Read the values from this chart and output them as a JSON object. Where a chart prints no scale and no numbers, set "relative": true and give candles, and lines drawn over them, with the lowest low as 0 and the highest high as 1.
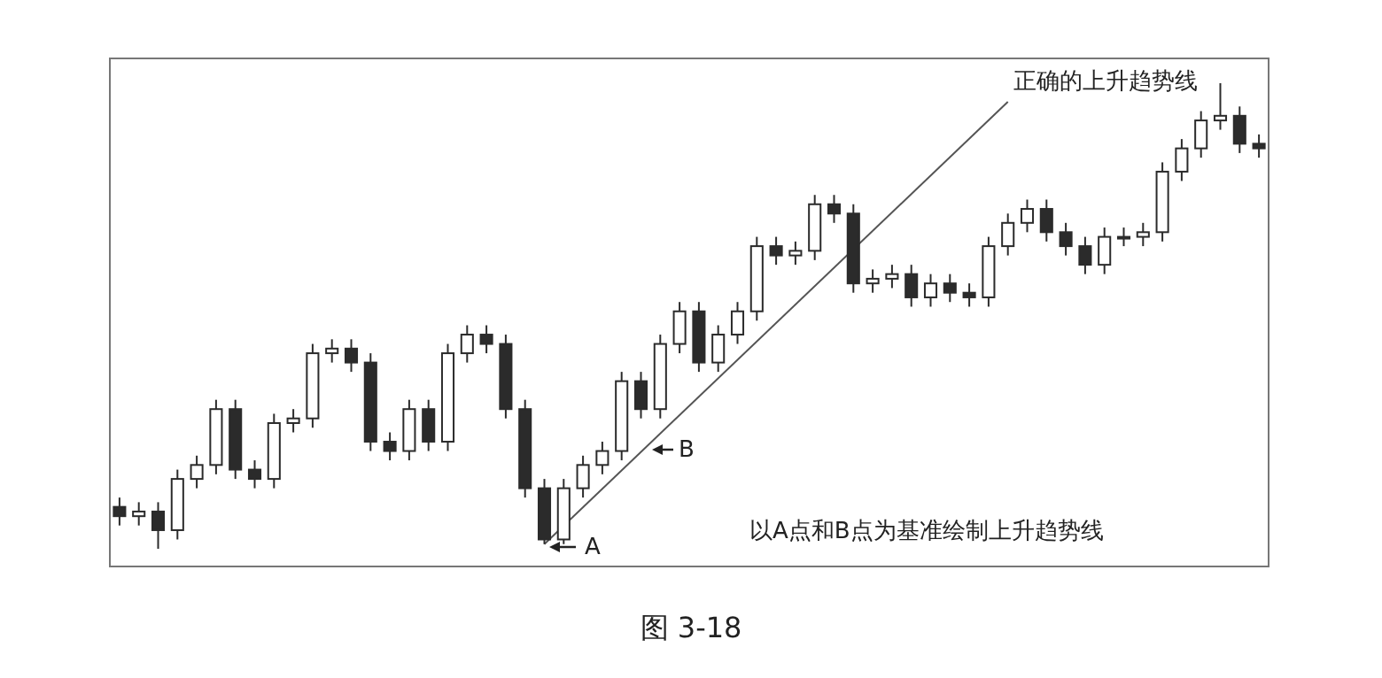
{
  "chart_data": {
    "type": "candlestick",
    "relative": true,
    "color": "#2b2b2b",
    "categories": [
      null,
      null,
      null,
      null,
      null,
      null,
      null,
      null,
      null,
      null,
      null,
      null,
      null,
      null,
      null,
      null,
      null,
      null,
      null,
      null,
      null,
      null,
      null,
      null,
      null,
      null,
      null,
      null,
      null,
      null,
      null,
      null,
      null,
      null,
      null,
      null,
      null,
      null,
      null,
      null,
      null,
      null,
      null,
      null,
      null,
      null,
      null,
      null,
      null,
      null,
      null,
      null,
      null,
      null,
      null,
      null,
      null,
      null,
      null,
      null
    ],
    "ohlc": [
      [
        0.09,
        0.11,
        0.05,
        0.07
      ],
      [
        0.07,
        0.1,
        0.05,
        0.08
      ],
      [
        0.08,
        0.1,
        0,
        0.04
      ],
      [
        0.04,
        0.17,
        0.02,
        0.15
      ],
      [
        0.15,
        0.2,
        0.13,
        0.18
      ],
      [
        0.18,
        0.32,
        0.16,
        0.3
      ],
      [
        0.3,
        0.32,
        0.15,
        0.17
      ],
      [
        0.17,
        0.19,
        0.13,
        0.15
      ],
      [
        0.15,
        0.29,
        0.13,
        0.27
      ],
      [
        0.27,
        0.3,
        0.25,
        0.28
      ],
      [
        0.28,
        0.44,
        0.26,
        0.42
      ],
      [
        0.42,
        0.45,
        0.4,
        0.43
      ],
      [
        0.43,
        0.45,
        0.38,
        0.4
      ],
      [
        0.4,
        0.42,
        0.21,
        0.23
      ],
      [
        0.23,
        0.25,
        0.19,
        0.21
      ],
      [
        0.21,
        0.32,
        0.19,
        0.3
      ],
      [
        0.3,
        0.32,
        0.21,
        0.23
      ],
      [
        0.23,
        0.44,
        0.21,
        0.42
      ],
      [
        0.42,
        0.48,
        0.4,
        0.46
      ],
      [
        0.46,
        0.48,
        0.42,
        0.44
      ],
      [
        0.44,
        0.46,
        0.28,
        0.3
      ],
      [
        0.3,
        0.32,
        0.11,
        0.13
      ],
      [
        0.13,
        0.15,
        0.01,
        0.02
      ],
      [
        0.02,
        0.15,
        0.01,
        0.13
      ],
      [
        0.13,
        0.2,
        0.11,
        0.18
      ],
      [
        0.18,
        0.23,
        0.16,
        0.21
      ],
      [
        0.21,
        0.38,
        0.19,
        0.36
      ],
      [
        0.36,
        0.38,
        0.28,
        0.3
      ],
      [
        0.3,
        0.46,
        0.28,
        0.44
      ],
      [
        0.44,
        0.53,
        0.42,
        0.51
      ],
      [
        0.51,
        0.53,
        0.38,
        0.4
      ],
      [
        0.4,
        0.48,
        0.38,
        0.46
      ],
      [
        0.46,
        0.53,
        0.44,
        0.51
      ],
      [
        0.51,
        0.67,
        0.49,
        0.65
      ],
      [
        0.65,
        0.67,
        0.61,
        0.63
      ],
      [
        0.63,
        0.66,
        0.61,
        0.64
      ],
      [
        0.64,
        0.76,
        0.62,
        0.74
      ],
      [
        0.74,
        0.76,
        0.7,
        0.72
      ],
      [
        0.72,
        0.74,
        0.55,
        0.57
      ],
      [
        0.57,
        0.6,
        0.55,
        0.58
      ],
      [
        0.58,
        0.61,
        0.56,
        0.59
      ],
      [
        0.59,
        0.61,
        0.52,
        0.54
      ],
      [
        0.54,
        0.59,
        0.52,
        0.57
      ],
      [
        0.57,
        0.59,
        0.53,
        0.55
      ],
      [
        0.55,
        0.57,
        0.52,
        0.54
      ],
      [
        0.54,
        0.67,
        0.52,
        0.65
      ],
      [
        0.65,
        0.72,
        0.63,
        0.7
      ],
      [
        0.7,
        0.75,
        0.68,
        0.73
      ],
      [
        0.73,
        0.75,
        0.66,
        0.68
      ],
      [
        0.68,
        0.7,
        0.63,
        0.65
      ],
      [
        0.65,
        0.67,
        0.59,
        0.61
      ],
      [
        0.61,
        0.69,
        0.59,
        0.67
      ],
      [
        0.67,
        0.69,
        0.65,
        0.67
      ],
      [
        0.67,
        0.7,
        0.65,
        0.68
      ],
      [
        0.68,
        0.83,
        0.66,
        0.81
      ],
      [
        0.81,
        0.88,
        0.79,
        0.86
      ],
      [
        0.86,
        0.94,
        0.84,
        0.92
      ],
      [
        0.92,
        1,
        0.9,
        0.93
      ],
      [
        0.93,
        0.95,
        0.85,
        0.87
      ],
      [
        0.87,
        0.89,
        0.84,
        0.86
      ]
    ],
    "series": [
      {
        "type": "line",
        "color": "#555555",
        "values": [
          null,
          null,
          null,
          null,
          null,
          null,
          null,
          null,
          null,
          null,
          null,
          null,
          null,
          null,
          null,
          null,
          null,
          null,
          null,
          null,
          null,
          null,
          0.01,
          null,
          null,
          null,
          null,
          null,
          null,
          null,
          null,
          null,
          null,
          null,
          null,
          null,
          null,
          null,
          null,
          null,
          null,
          null,
          null,
          null,
          null,
          null,
          0.96,
          null,
          null,
          null,
          null,
          null,
          null,
          null,
          null,
          null,
          null,
          null,
          null,
          null
        ]
      }
    ],
    "annotations": [
      "A",
      "B",
      "正确的上升趋势线",
      "以A点和B点为基准绘制上升趋势线",
      "图 3-18"
    ]
  }
}
